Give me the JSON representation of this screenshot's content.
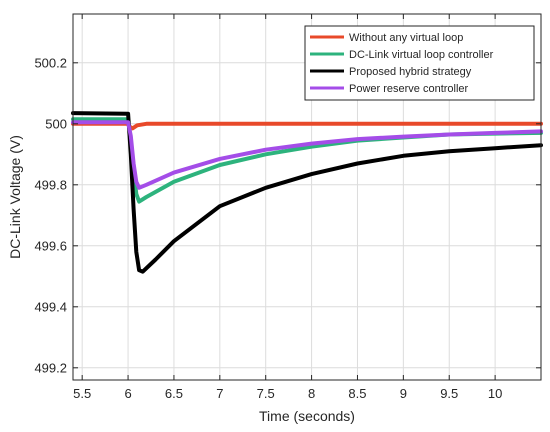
{
  "chart_data": {
    "type": "line",
    "title": "",
    "xlabel": "Time (seconds)",
    "ylabel": "DC-Link Voltage (V)",
    "xlim": [
      5.4,
      10.5
    ],
    "ylim": [
      499.16,
      500.36
    ],
    "xticks": [
      5.5,
      6,
      6.5,
      7,
      7.5,
      8,
      8.5,
      9,
      9.5,
      10
    ],
    "xtick_labels": [
      "5.5",
      "6",
      "6.5",
      "7",
      "7.5",
      "8",
      "8.5",
      "9",
      "9.5",
      "10"
    ],
    "yticks": [
      499.2,
      499.4,
      499.6,
      499.8,
      500,
      500.2
    ],
    "ytick_labels": [
      "499.2",
      "499.4",
      "499.6",
      "499.8",
      "500",
      "500.2"
    ],
    "grid": true,
    "legend_position": "top-right",
    "series": [
      {
        "name": "Without any virtual loop",
        "color": "#e8492a",
        "points": [
          [
            5.4,
            500.0
          ],
          [
            6.0,
            500.0
          ],
          [
            6.02,
            499.99
          ],
          [
            6.05,
            499.985
          ],
          [
            6.1,
            499.995
          ],
          [
            6.2,
            500.0
          ],
          [
            10.5,
            500.0
          ]
        ]
      },
      {
        "name": "DC-Link virtual loop controller",
        "color": "#2db37d",
        "points": [
          [
            5.4,
            500.015
          ],
          [
            6.0,
            500.015
          ],
          [
            6.03,
            499.95
          ],
          [
            6.06,
            499.85
          ],
          [
            6.09,
            499.77
          ],
          [
            6.12,
            499.745
          ],
          [
            6.2,
            499.76
          ],
          [
            6.5,
            499.81
          ],
          [
            7.0,
            499.865
          ],
          [
            7.5,
            499.9
          ],
          [
            8.0,
            499.925
          ],
          [
            8.5,
            499.945
          ],
          [
            9.0,
            499.955
          ],
          [
            9.5,
            499.965
          ],
          [
            10.0,
            499.968
          ],
          [
            10.5,
            499.97
          ]
        ]
      },
      {
        "name": "Proposed hybrid strategy",
        "color": "#000000",
        "points": [
          [
            5.4,
            500.035
          ],
          [
            6.0,
            500.033
          ],
          [
            6.03,
            499.9
          ],
          [
            6.06,
            499.72
          ],
          [
            6.09,
            499.58
          ],
          [
            6.12,
            499.52
          ],
          [
            6.16,
            499.515
          ],
          [
            6.3,
            499.555
          ],
          [
            6.5,
            499.615
          ],
          [
            7.0,
            499.73
          ],
          [
            7.5,
            499.79
          ],
          [
            8.0,
            499.835
          ],
          [
            8.5,
            499.87
          ],
          [
            9.0,
            499.895
          ],
          [
            9.5,
            499.91
          ],
          [
            10.0,
            499.92
          ],
          [
            10.5,
            499.93
          ]
        ]
      },
      {
        "name": "Power reserve controller",
        "color": "#a44de8",
        "points": [
          [
            5.4,
            500.005
          ],
          [
            6.0,
            500.005
          ],
          [
            6.03,
            499.96
          ],
          [
            6.06,
            499.87
          ],
          [
            6.09,
            499.81
          ],
          [
            6.12,
            499.79
          ],
          [
            6.2,
            499.8
          ],
          [
            6.5,
            499.84
          ],
          [
            7.0,
            499.885
          ],
          [
            7.5,
            499.915
          ],
          [
            8.0,
            499.935
          ],
          [
            8.5,
            499.95
          ],
          [
            9.0,
            499.958
          ],
          [
            9.5,
            499.965
          ],
          [
            10.0,
            499.97
          ],
          [
            10.5,
            499.975
          ]
        ]
      }
    ]
  }
}
